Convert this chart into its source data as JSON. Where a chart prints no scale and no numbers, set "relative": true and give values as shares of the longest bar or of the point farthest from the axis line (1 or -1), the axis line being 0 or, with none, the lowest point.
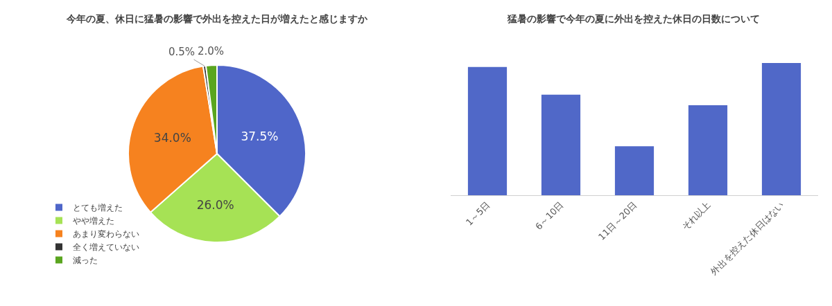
{
  "chart_data": [
    {
      "type": "pie",
      "title": "今年の夏、休日に猛暑の影響で外出を控えた日が増えたと感じますか",
      "categories": [
        "とても増えた",
        "やや増えた",
        "あまり変わらない",
        "全く増えていない",
        "減った"
      ],
      "values": [
        37.5,
        26.0,
        34.0,
        0.5,
        2.0
      ],
      "colors": [
        "#4f66c9",
        "#a6e255",
        "#f6821f",
        "#333333",
        "#5aa51f"
      ],
      "value_labels": [
        "37.5%",
        "26.0%",
        "34.0%",
        "0.5%",
        "2.0%"
      ],
      "legend": "bottom left"
    },
    {
      "type": "bar",
      "title": "猛暑の影響で今年の夏に外出を控えた休日の日数について",
      "categories": [
        "1～5日",
        "6～10日",
        "11日～20日",
        "それ以上",
        "外出を控えた休日はない"
      ],
      "values": [
        0.97,
        0.76,
        0.37,
        0.68,
        1.0
      ],
      "color": "#5068c8",
      "relative": true
    }
  ]
}
